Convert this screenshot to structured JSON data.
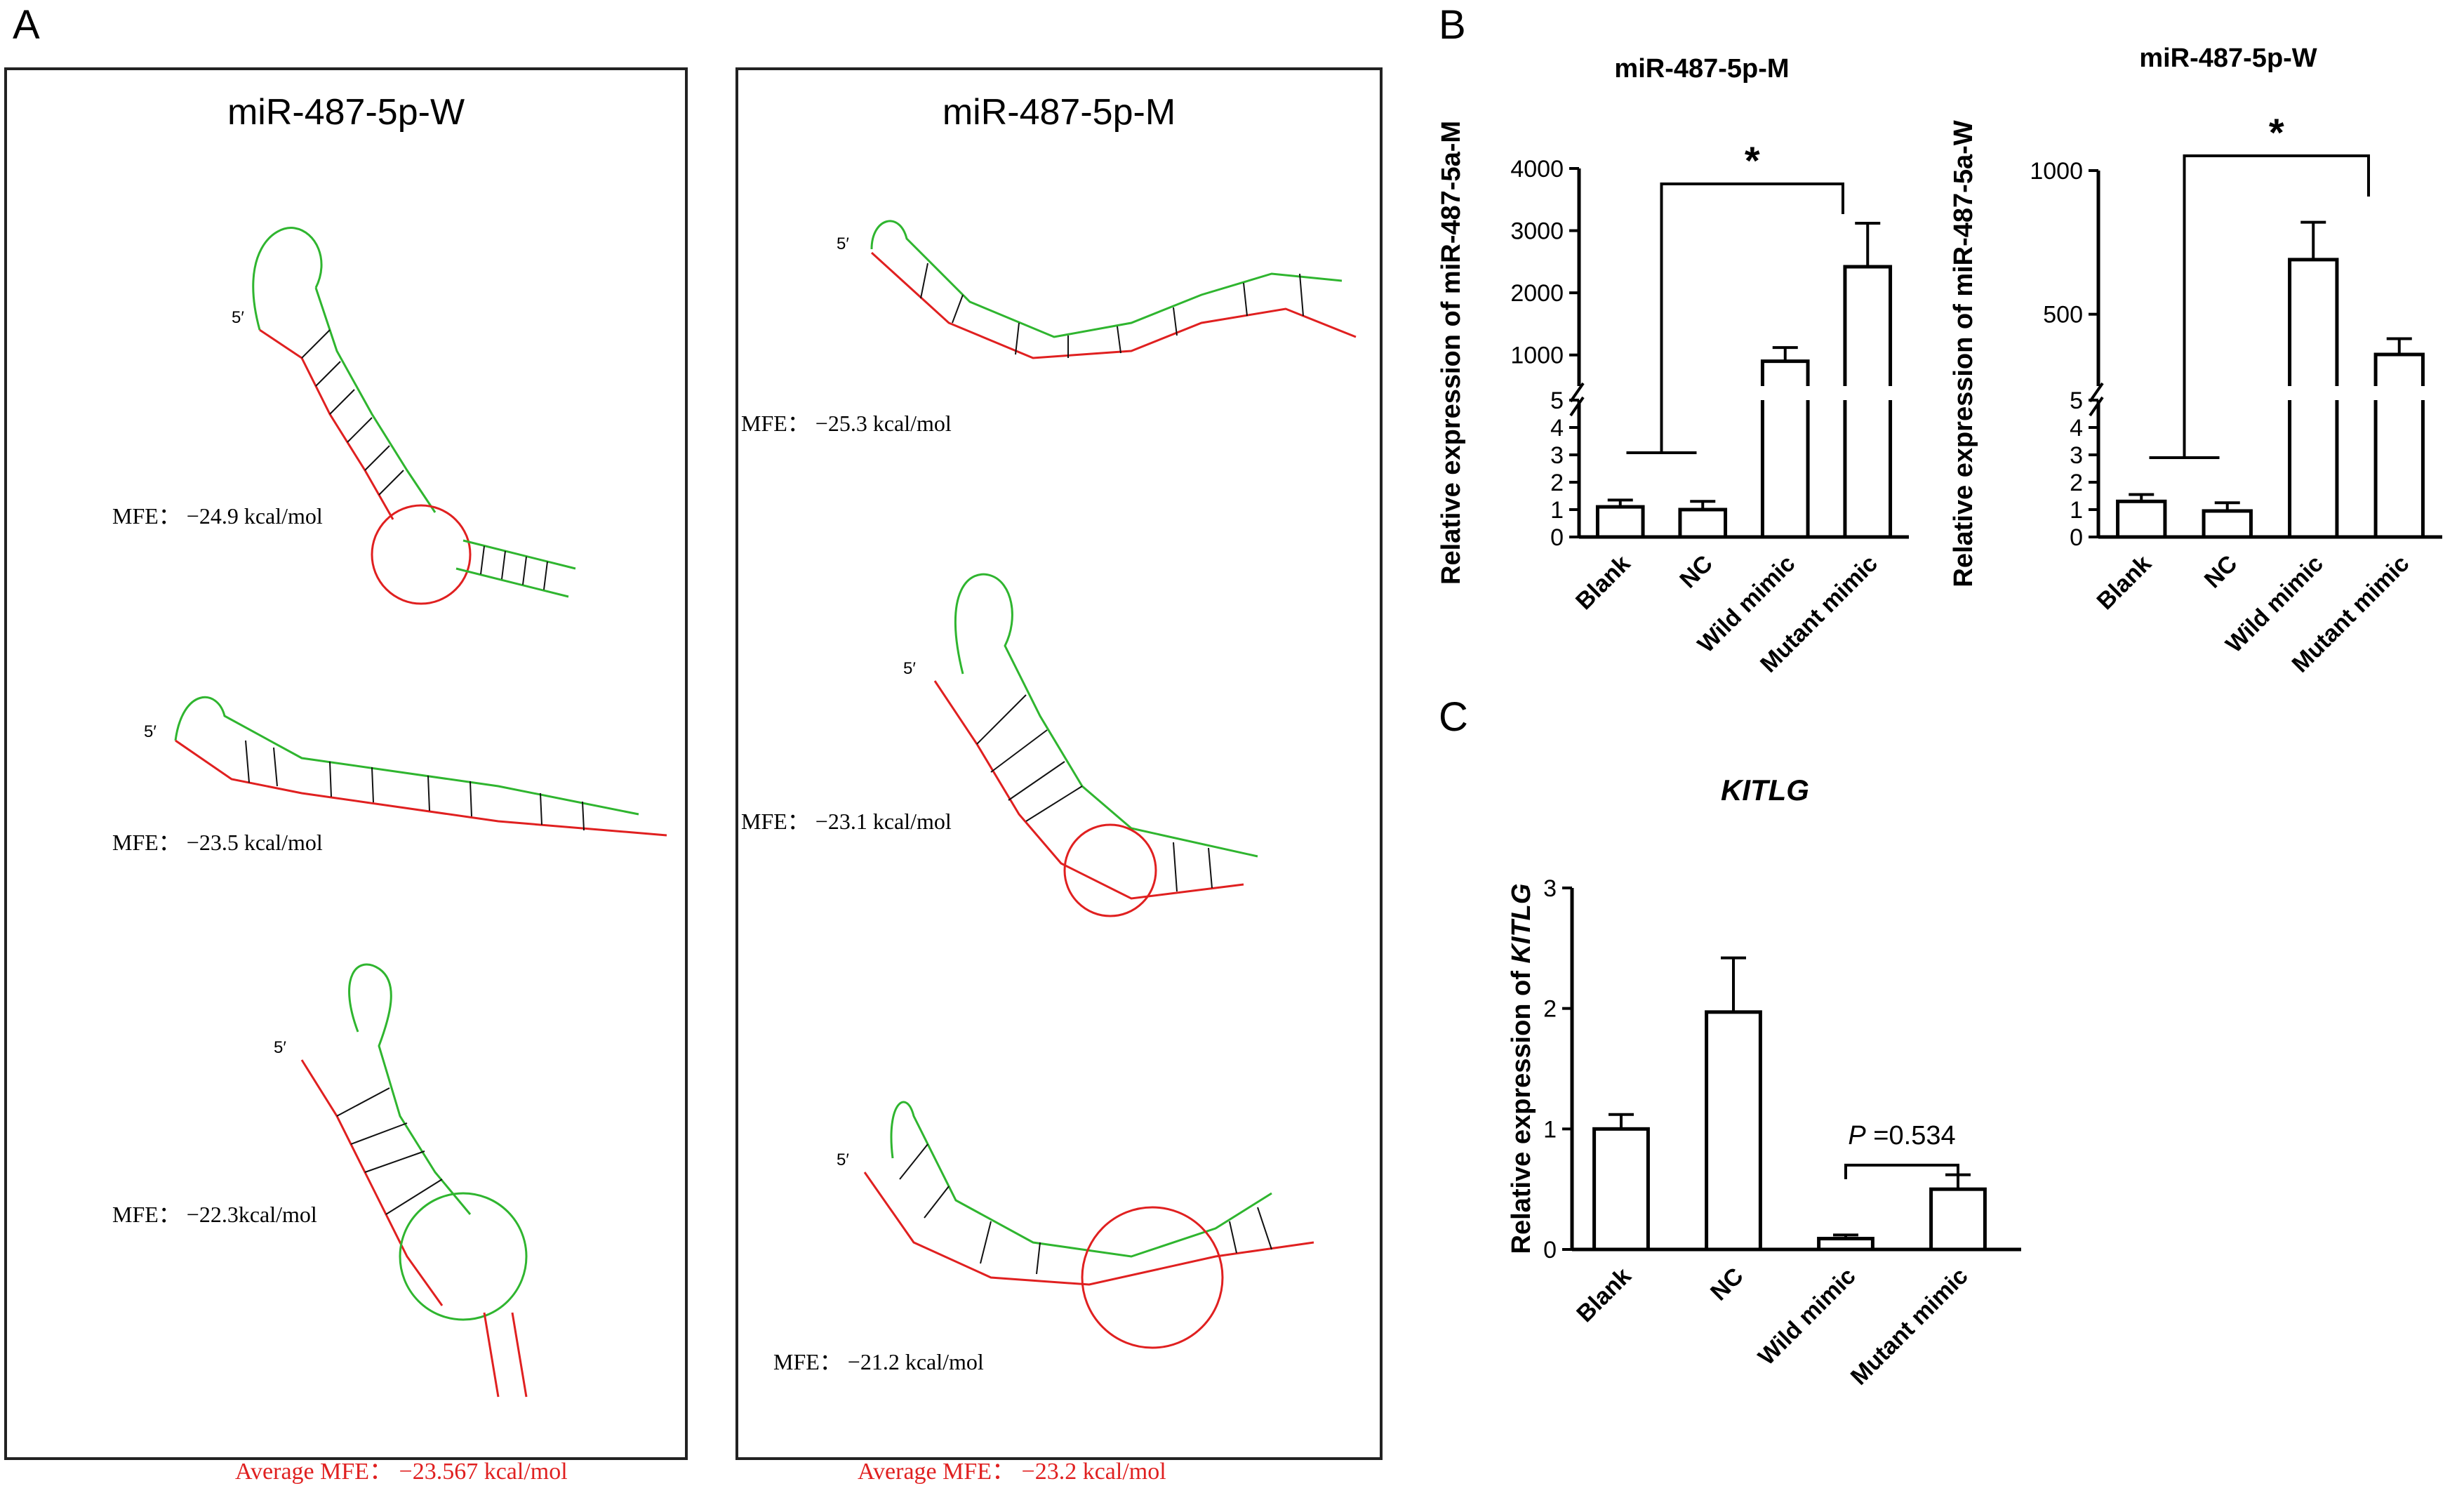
{
  "panels": {
    "a_label": "A",
    "b_label": "B",
    "c_label": "C"
  },
  "panel_a": {
    "wild_box": {
      "title": "miR-487-5p-W",
      "five_prime": "5′",
      "mfe": [
        "MFE：  −24.9 kcal/mol",
        "MFE：  −23.5 kcal/mol",
        "MFE：  −22.3kcal/mol"
      ],
      "average": "Average MFE：  −23.567 kcal/mol"
    },
    "mutant_box": {
      "title": "miR-487-5p-M",
      "five_prime": "5′",
      "mfe": [
        "MFE：  −25.3 kcal/mol",
        "MFE：  −23.1 kcal/mol",
        "MFE：  −21.2 kcal/mol"
      ],
      "average": "Average MFE：  −23.2 kcal/mol"
    },
    "colors": {
      "mirna_strand": "#2fb52f",
      "target_strand": "#e02020",
      "pairs": "#111111"
    }
  },
  "chart_data": [
    {
      "id": "B-left",
      "type": "bar",
      "title": "miR-487-5p-M",
      "ylabel": "Relative expression of miR-487-5a-M",
      "categories": [
        "Blank",
        "NC",
        "Wild mimic",
        "Mutant mimic"
      ],
      "values": [
        1.1,
        1.0,
        900,
        2420
      ],
      "errors": [
        0.25,
        0.3,
        220,
        700
      ],
      "axis_break": true,
      "lower_range": [
        0,
        5
      ],
      "lower_ticks": [
        "0",
        "1",
        "2",
        "3",
        "4",
        "5"
      ],
      "upper_range": [
        500,
        4000
      ],
      "upper_ticks": [
        "1000",
        "2000",
        "3000",
        "4000"
      ],
      "significance": "*",
      "bar_color": "#000000"
    },
    {
      "id": "B-right",
      "type": "bar",
      "title": "miR-487-5p-W",
      "ylabel": "Relative expression of miR-487-5a-W",
      "categories": [
        "Blank",
        "NC",
        "Wild mimic",
        "Mutant mimic"
      ],
      "values": [
        1.3,
        0.95,
        690,
        360
      ],
      "errors": [
        0.25,
        0.3,
        130,
        55
      ],
      "axis_break": true,
      "lower_range": [
        0,
        5
      ],
      "lower_ticks": [
        "0",
        "1",
        "2",
        "3",
        "4",
        "5"
      ],
      "upper_range": [
        250,
        1000
      ],
      "upper_ticks": [
        "500",
        "1000"
      ],
      "significance": "*",
      "bar_color": "#000000"
    },
    {
      "id": "C",
      "type": "bar",
      "title": "KITLG",
      "ylabel_prefix": "Relative expression of ",
      "ylabel_italic": "KITLG",
      "categories": [
        "Blank",
        "NC",
        "Wild mimic",
        "Mutant mimic"
      ],
      "values": [
        1.0,
        1.97,
        0.09,
        0.5
      ],
      "errors": [
        0.12,
        0.45,
        0.03,
        0.12
      ],
      "ylim": [
        0,
        3
      ],
      "ticks": [
        "0",
        "1",
        "2",
        "3"
      ],
      "p_label_italic": "P",
      "p_label_rest": " =0.534",
      "bar_color": "#000000"
    }
  ]
}
